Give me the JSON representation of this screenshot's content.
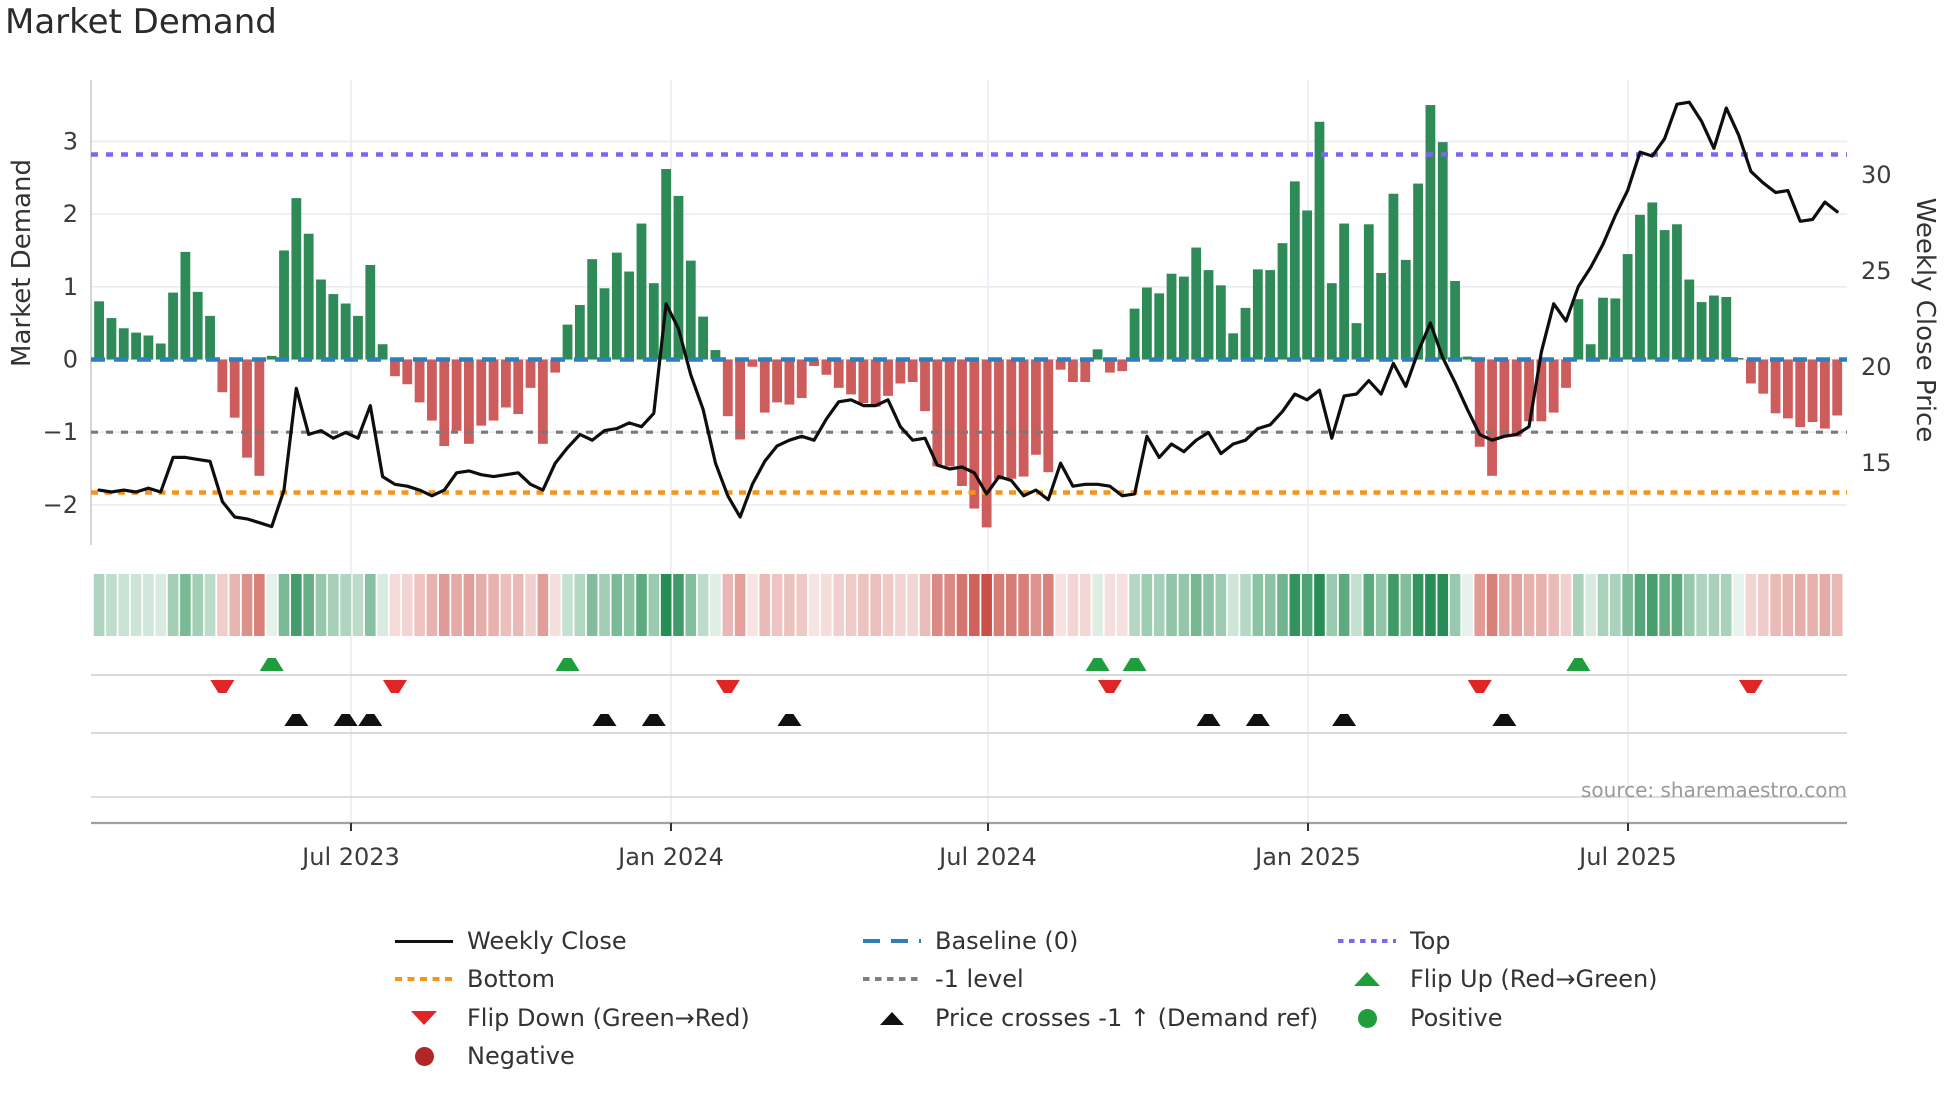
{
  "title": "Market Demand",
  "axes": {
    "left_label": "Market Demand",
    "right_label": "Weekly Close Price",
    "left_tick_labels": [
      "3",
      "2",
      "1",
      "0",
      "−1",
      "−2"
    ],
    "left_tick_values": [
      3,
      2,
      1,
      0,
      -1,
      -2
    ],
    "right_tick_labels": [
      "30",
      "25",
      "20",
      "15"
    ],
    "right_tick_values": [
      30,
      25,
      20,
      15
    ],
    "x_tick_labels": [
      "Jul 2023",
      "Jan 2024",
      "Jul 2024",
      "Jan 2025",
      "Jul 2025"
    ]
  },
  "source_note": "source: sharemaestro.com",
  "colors": {
    "bar_positive": "#2e8b57",
    "bar_negative": "#cd5c5c",
    "price_line": "#0e0e0e",
    "baseline": "#2e7fba",
    "top_line": "#7b68ee",
    "bottom_line": "#f6951d",
    "minus_one_line": "#7a7a7a",
    "flip_up_marker": "#1f9e3d",
    "flip_down_marker": "#e12526",
    "price_cross_marker": "#111111",
    "positive_dot": "#1f9e3d",
    "negative_dot": "#b22626",
    "heat_positive": "#228b50",
    "heat_negative": "#c2392f",
    "grid": "#ebebf3",
    "row_line": "#d4d4d4",
    "axis_line": "#9f9f9f",
    "tick_text": "#3c3c3c"
  },
  "legend": {
    "items": [
      {
        "label": "Weekly Close"
      },
      {
        "label": "Baseline (0)"
      },
      {
        "label": "Top"
      },
      {
        "label": "Bottom"
      },
      {
        "label": "-1 level"
      },
      {
        "label": "Flip Up (Red→Green)"
      },
      {
        "label": "Flip Down (Green→Red)"
      },
      {
        "label": "Price crosses -1 ↑ (Demand ref)"
      },
      {
        "label": "Positive"
      },
      {
        "label": "Negative"
      }
    ]
  },
  "chart_data": {
    "type": "bar+line",
    "title": "Market Demand",
    "ylabel_left": "Market Demand",
    "ylabel_right": "Weekly Close Price",
    "x_tick_labels": [
      "Jul 2023",
      "Jan 2024",
      "Jul 2024",
      "Jan 2025",
      "Jul 2025"
    ],
    "ylim_left": [
      -2.55,
      3.85
    ],
    "ylim_right": [
      10.7,
      34.9
    ],
    "reference_lines": {
      "top": 2.82,
      "baseline": 0,
      "minus_one_level": -1,
      "bottom": -1.83
    },
    "series": [
      {
        "name": "Market Demand (weekly bars)",
        "values": [
          0.8,
          0.57,
          0.43,
          0.37,
          0.33,
          0.22,
          0.92,
          1.48,
          0.93,
          0.6,
          -0.45,
          -0.8,
          -1.35,
          -1.6,
          0.05,
          1.5,
          2.22,
          1.73,
          1.1,
          0.9,
          0.77,
          0.6,
          1.3,
          0.21,
          -0.23,
          -0.34,
          -0.59,
          -0.84,
          -1.19,
          -0.98,
          -1.16,
          -0.91,
          -0.84,
          -0.66,
          -0.75,
          -0.39,
          -1.16,
          -0.18,
          0.48,
          0.75,
          1.38,
          0.98,
          1.47,
          1.21,
          1.87,
          1.05,
          2.62,
          2.25,
          1.36,
          0.59,
          0.13,
          -0.78,
          -1.1,
          -0.1,
          -0.73,
          -0.59,
          -0.62,
          -0.53,
          -0.09,
          -0.21,
          -0.39,
          -0.48,
          -0.6,
          -0.65,
          -0.5,
          -0.33,
          -0.31,
          -0.71,
          -1.47,
          -1.47,
          -1.74,
          -2.05,
          -2.31,
          -1.65,
          -1.64,
          -1.61,
          -1.31,
          -1.55,
          -0.14,
          -0.31,
          -0.31,
          0.14,
          -0.18,
          -0.16,
          0.7,
          0.99,
          0.91,
          1.18,
          1.14,
          1.54,
          1.23,
          1.02,
          0.36,
          0.71,
          1.24,
          1.23,
          1.6,
          2.45,
          2.05,
          3.27,
          1.05,
          1.87,
          0.5,
          1.86,
          1.19,
          2.28,
          1.37,
          2.42,
          3.5,
          2.99,
          1.08,
          0.04,
          -1.2,
          -1.6,
          -1.06,
          -1.06,
          -0.85,
          -0.85,
          -0.73,
          -0.39,
          0.83,
          0.21,
          0.85,
          0.84,
          1.45,
          1.99,
          2.16,
          1.78,
          1.86,
          1.1,
          0.79,
          0.88,
          0.86,
          0.02,
          -0.33,
          -0.47,
          -0.74,
          -0.81,
          -0.93,
          -0.86,
          -0.95,
          -0.77
        ]
      },
      {
        "name": "Weekly Close",
        "values": [
          13.6,
          13.5,
          13.6,
          13.5,
          13.7,
          13.5,
          15.3,
          15.3,
          15.2,
          15.1,
          13.0,
          12.2,
          12.1,
          11.9,
          11.7,
          13.6,
          18.9,
          16.5,
          16.7,
          16.3,
          16.6,
          16.3,
          18.0,
          14.3,
          13.9,
          13.8,
          13.6,
          13.3,
          13.6,
          14.5,
          14.6,
          14.4,
          14.3,
          14.4,
          14.5,
          13.9,
          13.6,
          15.0,
          15.8,
          16.5,
          16.2,
          16.7,
          16.8,
          17.1,
          16.9,
          17.6,
          23.3,
          22.0,
          19.6,
          17.8,
          15.0,
          13.3,
          12.2,
          13.9,
          15.1,
          15.9,
          16.2,
          16.4,
          16.2,
          17.3,
          18.2,
          18.3,
          18.0,
          18.0,
          18.3,
          16.9,
          16.2,
          16.3,
          14.9,
          14.7,
          14.8,
          14.5,
          13.4,
          14.3,
          14.1,
          13.3,
          13.6,
          13.1,
          15.0,
          13.8,
          13.9,
          13.9,
          13.8,
          13.3,
          13.4,
          16.4,
          15.3,
          16.0,
          15.6,
          16.2,
          16.6,
          15.5,
          16.0,
          16.2,
          16.8,
          17.0,
          17.7,
          18.6,
          18.3,
          18.8,
          16.3,
          18.5,
          18.6,
          19.3,
          18.6,
          20.2,
          19.0,
          20.8,
          22.3,
          20.5,
          19.2,
          17.8,
          16.5,
          16.2,
          16.4,
          16.5,
          16.9,
          20.8,
          23.3,
          22.4,
          24.2,
          25.2,
          26.4,
          27.9,
          29.2,
          31.2,
          31.0,
          31.9,
          33.7,
          33.8,
          32.8,
          31.4,
          33.5,
          32.1,
          30.2,
          29.6,
          29.1,
          29.2,
          27.6,
          27.7,
          28.6,
          28.1
        ]
      }
    ],
    "markers": {
      "flip_up_weeks": [
        14,
        38,
        81,
        84,
        120
      ],
      "flip_down_weeks": [
        10,
        24,
        51,
        82,
        112,
        134
      ],
      "price_cross_weeks": [
        16,
        20,
        22,
        41,
        45,
        56,
        90,
        94,
        101,
        114
      ]
    },
    "heatmap_strip": "same weekly demand values rendered as green/red intensity cells",
    "legend_position": "bottom",
    "grid": true
  }
}
